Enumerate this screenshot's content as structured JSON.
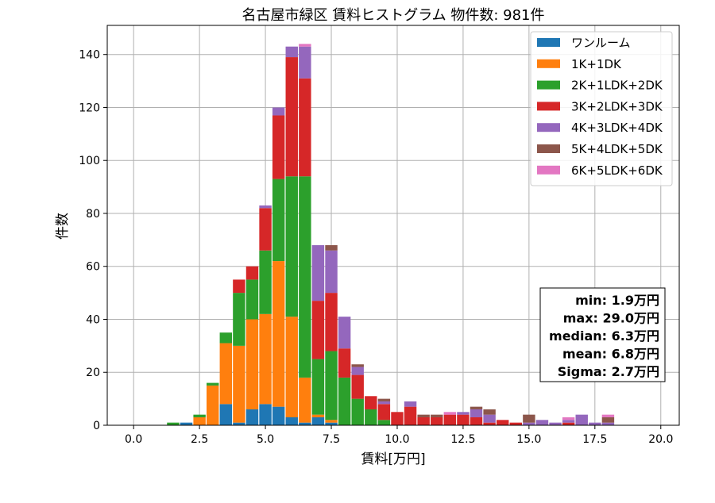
{
  "chart_data": {
    "type": "bar",
    "stacked": true,
    "title": "名古屋市緑区 賃料ヒストグラム  物件数: 981件",
    "xlabel": "賃料[万円]",
    "ylabel": "件数",
    "xlim": [
      -1.0,
      20.7
    ],
    "ylim": [
      0,
      151
    ],
    "xticks": [
      0.0,
      2.5,
      5.0,
      7.5,
      10.0,
      12.5,
      15.0,
      17.5,
      20.0
    ],
    "xtick_labels": [
      "0.0",
      "2.5",
      "5.0",
      "7.5",
      "10.0",
      "12.5",
      "15.0",
      "17.5",
      "20.0"
    ],
    "yticks": [
      0,
      20,
      40,
      60,
      80,
      100,
      120,
      140
    ],
    "ytick_labels": [
      "0",
      "20",
      "40",
      "60",
      "80",
      "100",
      "120",
      "140"
    ],
    "grid": true,
    "legend_position": "top-right",
    "bin_width": 0.5,
    "x": [
      1.5,
      2.0,
      2.5,
      3.0,
      3.5,
      4.0,
      4.5,
      5.0,
      5.5,
      6.0,
      6.5,
      7.0,
      7.5,
      8.0,
      8.5,
      9.0,
      9.5,
      10.0,
      10.5,
      11.0,
      11.5,
      12.0,
      12.5,
      13.0,
      13.5,
      14.0,
      14.5,
      15.0,
      15.5,
      16.0,
      16.5,
      17.0,
      17.5,
      18.0
    ],
    "series": [
      {
        "name": "ワンルーム",
        "color": "#1f77b4",
        "values": [
          0,
          1,
          0,
          0,
          8,
          1,
          6,
          8,
          7,
          3,
          1,
          3,
          1,
          0,
          0,
          0,
          0,
          0,
          0,
          0,
          0,
          0,
          0,
          0,
          0,
          0,
          0,
          0,
          0,
          0,
          0,
          0,
          0,
          0
        ]
      },
      {
        "name": "1K+1DK",
        "color": "#ff7f0e",
        "values": [
          0,
          0,
          3,
          15,
          23,
          29,
          34,
          34,
          55,
          38,
          17,
          1,
          1,
          0,
          0,
          0,
          0,
          0,
          0,
          0,
          0,
          0,
          0,
          0,
          0,
          0,
          0,
          0,
          0,
          0,
          0,
          0,
          0,
          0
        ]
      },
      {
        "name": "2K+1LDK+2DK",
        "color": "#2ca02c",
        "values": [
          1,
          0,
          1,
          1,
          4,
          20,
          15,
          24,
          31,
          53,
          76,
          21,
          26,
          18,
          10,
          6,
          2,
          0,
          0,
          0,
          0,
          0,
          0,
          0,
          0,
          0,
          0,
          0,
          0,
          0,
          0,
          0,
          0,
          0
        ]
      },
      {
        "name": "3K+2LDK+3DK",
        "color": "#d62728",
        "values": [
          0,
          0,
          0,
          0,
          0,
          5,
          5,
          16,
          24,
          45,
          37,
          22,
          22,
          11,
          9,
          5,
          6,
          5,
          7,
          3,
          3,
          4,
          4,
          3,
          1,
          2,
          1,
          0,
          0,
          0,
          1,
          0,
          0,
          0
        ]
      },
      {
        "name": "4K+3LDK+4DK",
        "color": "#9467bd",
        "values": [
          0,
          0,
          0,
          0,
          0,
          0,
          0,
          1,
          3,
          4,
          12,
          21,
          16,
          12,
          3,
          0,
          1,
          0,
          2,
          0,
          0,
          0,
          1,
          3,
          3,
          0,
          0,
          1,
          2,
          1,
          1,
          4,
          1,
          1
        ]
      },
      {
        "name": "5K+4LDK+5DK",
        "color": "#8c564b",
        "values": [
          0,
          0,
          0,
          0,
          0,
          0,
          0,
          0,
          0,
          0,
          0,
          0,
          2,
          0,
          1,
          0,
          1,
          0,
          0,
          1,
          1,
          0,
          0,
          1,
          2,
          0,
          0,
          3,
          0,
          0,
          0,
          0,
          0,
          2
        ]
      },
      {
        "name": "6K+5LDK+6DK",
        "color": "#e377c2",
        "values": [
          0,
          0,
          0,
          0,
          0,
          0,
          0,
          0,
          0,
          0,
          1,
          0,
          0,
          0,
          0,
          0,
          0,
          0,
          0,
          0,
          0,
          1,
          0,
          0,
          0,
          0,
          0,
          0,
          0,
          0,
          1,
          0,
          0,
          1
        ]
      }
    ],
    "stats": [
      "min: 1.9万円",
      "max: 29.0万円",
      "median: 6.3万円",
      "mean: 6.8万円",
      "Sigma: 2.7万円"
    ]
  }
}
